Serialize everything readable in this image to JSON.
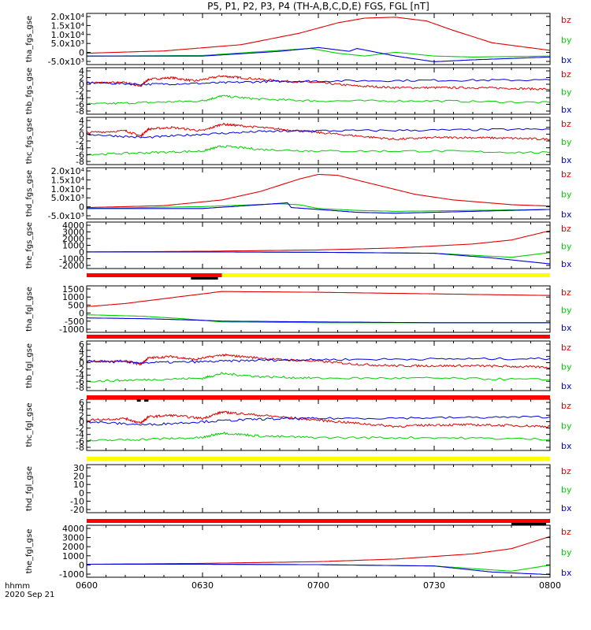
{
  "title": "P5, P1, P2, P3, P4 (TH-A,B,C,D,E) FGS, FGL [nT]",
  "x_unit_label": "hhmm",
  "date_label": "2020 Sep 21",
  "colors": {
    "bz": "#e00000",
    "by": "#00d000",
    "bx": "#0000e0",
    "bar_red": "#ff0000",
    "bar_yellow": "#ffff00",
    "bar_black": "#000000"
  },
  "chart_data": {
    "type": "line",
    "x_ticks": [
      "0600",
      "0630",
      "0700",
      "0730",
      "0800"
    ],
    "x_range": [
      "06:00",
      "08:00"
    ],
    "panels": [
      {
        "ylabel": "tha_fgs_gse",
        "y_ticks": [
          "2.0x10⁴",
          "1.5x10⁴",
          "1.0x10⁴",
          "5.0x10³",
          "0",
          "-5.0x10³"
        ],
        "y_range": [
          -6000,
          21000
        ],
        "series": [
          {
            "name": "bz",
            "x": [
              "06:00",
              "06:20",
              "06:40",
              "06:55",
              "07:05",
              "07:12",
              "07:20",
              "07:28",
              "07:35",
              "07:45",
              "08:00"
            ],
            "y": [
              0,
              1200,
              4500,
              10500,
              16000,
              18500,
              19000,
              17000,
              12000,
              5500,
              1500
            ]
          },
          {
            "name": "by",
            "x": [
              "06:00",
              "06:30",
              "06:50",
              "06:58",
              "07:05",
              "07:12",
              "07:20",
              "07:30",
              "07:40",
              "08:00"
            ],
            "y": [
              -1500,
              -1200,
              1500,
              2500,
              0,
              -1500,
              500,
              -1500,
              -2000,
              -1500
            ]
          },
          {
            "name": "bx",
            "x": [
              "06:00",
              "06:30",
              "06:50",
              "07:00",
              "07:08",
              "07:10",
              "07:20",
              "07:30",
              "07:40",
              "08:00"
            ],
            "y": [
              -1500,
              -1500,
              1000,
              3000,
              1000,
              2500,
              -1500,
              -4500,
              -3500,
              -2000
            ]
          }
        ]
      },
      {
        "ylabel": "thb_fgs_gse",
        "y_ticks": [
          "4",
          "2",
          "0",
          "-2",
          "-4",
          "-6",
          "-8"
        ],
        "y_range": [
          -9,
          5
        ],
        "series": [
          {
            "name": "bz",
            "x": [
              "06:00",
              "06:10",
              "06:14",
              "06:16",
              "06:22",
              "06:28",
              "06:35",
              "06:40",
              "06:50",
              "07:00",
              "07:10",
              "07:20",
              "07:30",
              "07:40",
              "07:50",
              "08:00"
            ],
            "y": [
              0.5,
              0.5,
              -0.5,
              1.5,
              2.0,
              1.0,
              2.5,
              2.0,
              1.0,
              0.5,
              -0.5,
              -1.0,
              -1.0,
              -1.0,
              -1.2,
              -1.5
            ]
          },
          {
            "name": "by",
            "x": [
              "06:00",
              "06:15",
              "06:30",
              "06:35",
              "06:45",
              "07:00",
              "07:30",
              "08:00"
            ],
            "y": [
              -6.0,
              -5.5,
              -5.0,
              -3.5,
              -4.5,
              -5.0,
              -5.0,
              -5.5
            ]
          },
          {
            "name": "bx",
            "x": [
              "06:00",
              "06:15",
              "06:30",
              "06:45",
              "07:00",
              "07:30",
              "08:00"
            ],
            "y": [
              0.5,
              0.0,
              0.3,
              0.8,
              1.0,
              1.2,
              1.3
            ]
          }
        ]
      },
      {
        "ylabel": "thc_fgs_gse",
        "y_ticks": [
          "4",
          "2",
          "0",
          "-2",
          "-4",
          "-6",
          "-8"
        ],
        "y_range": [
          -9,
          5
        ],
        "series": [
          {
            "name": "bz",
            "x": [
              "06:00",
              "06:10",
              "06:14",
              "06:16",
              "06:22",
              "06:30",
              "06:35",
              "06:40",
              "06:50",
              "07:00",
              "07:10",
              "07:20",
              "07:30",
              "07:40",
              "07:50",
              "08:00"
            ],
            "y": [
              0.5,
              1.0,
              -0.5,
              1.5,
              2.0,
              1.0,
              3.0,
              2.5,
              1.5,
              0.5,
              -0.5,
              -1.5,
              -1.0,
              -1.0,
              -1.2,
              -1.5
            ]
          },
          {
            "name": "by",
            "x": [
              "06:00",
              "06:15",
              "06:30",
              "06:35",
              "06:45",
              "07:00",
              "07:30",
              "08:00"
            ],
            "y": [
              -6.0,
              -5.5,
              -5.0,
              -3.5,
              -4.5,
              -5.0,
              -5.0,
              -5.5
            ]
          },
          {
            "name": "bx",
            "x": [
              "06:00",
              "06:15",
              "06:30",
              "06:45",
              "07:00",
              "07:30",
              "08:00"
            ],
            "y": [
              0.0,
              -1.0,
              0.0,
              0.8,
              1.0,
              1.2,
              1.5
            ]
          }
        ]
      },
      {
        "ylabel": "thd_fgs_gse",
        "y_ticks": [
          "2.0x10⁴",
          "1.5x10⁴",
          "1.0x10⁴",
          "5.0x10³",
          "0",
          "-5.0x10³"
        ],
        "y_range": [
          -6000,
          21000
        ],
        "series": [
          {
            "name": "bz",
            "x": [
              "06:00",
              "06:20",
              "06:35",
              "06:45",
              "06:55",
              "07:00",
              "07:05",
              "07:15",
              "07:25",
              "07:35",
              "07:50",
              "08:00"
            ],
            "y": [
              0,
              1000,
              4000,
              8500,
              15000,
              17500,
              17000,
              12000,
              7000,
              4000,
              1500,
              800
            ]
          },
          {
            "name": "by",
            "x": [
              "06:00",
              "06:30",
              "06:50",
              "06:55",
              "07:00",
              "07:10",
              "07:20",
              "07:40",
              "08:00"
            ],
            "y": [
              -500,
              500,
              2000,
              1500,
              -500,
              -1500,
              -2000,
              -1500,
              -1000
            ]
          },
          {
            "name": "bx",
            "x": [
              "06:00",
              "06:30",
              "06:45",
              "06:52",
              "06:53",
              "07:00",
              "07:10",
              "07:20",
              "07:40",
              "08:00"
            ],
            "y": [
              -500,
              -500,
              1500,
              2500,
              0,
              -1000,
              -2500,
              -3000,
              -2000,
              -1000
            ]
          }
        ]
      },
      {
        "ylabel": "the_fgs_gse",
        "y_ticks": [
          "4000",
          "3000",
          "2000",
          "1000",
          "0",
          "-1000",
          "-2000"
        ],
        "y_range": [
          -2500,
          4500
        ],
        "series": [
          {
            "name": "bz",
            "x": [
              "06:00",
              "06:30",
              "07:00",
              "07:20",
              "07:40",
              "07:50",
              "08:00"
            ],
            "y": [
              0,
              100,
              300,
              600,
              1200,
              1800,
              3200
            ]
          },
          {
            "name": "by",
            "x": [
              "06:00",
              "06:30",
              "07:00",
              "07:30",
              "07:50",
              "08:00"
            ],
            "y": [
              0,
              0,
              -50,
              -200,
              -800,
              -100
            ]
          },
          {
            "name": "bx",
            "x": [
              "06:00",
              "06:30",
              "07:00",
              "07:30",
              "07:45",
              "08:00"
            ],
            "y": [
              0,
              0,
              -50,
              -200,
              -900,
              -1800
            ]
          }
        ]
      },
      {
        "ylabel": "tha_fgl_gse",
        "y_ticks": [
          "1500",
          "1000",
          "500",
          "0",
          "-500",
          "-1000"
        ],
        "y_range": [
          -1200,
          1700
        ],
        "series": [
          {
            "name": "bz",
            "x": [
              "06:00",
              "06:10",
              "06:20",
              "06:30",
              "06:35",
              "07:00",
              "07:30",
              "08:00"
            ],
            "y": [
              400,
              600,
              900,
              1200,
              1350,
              1300,
              1200,
              1100
            ]
          },
          {
            "name": "by",
            "x": [
              "06:00",
              "06:15",
              "06:25",
              "06:35",
              "07:00",
              "07:30",
              "08:00"
            ],
            "y": [
              -100,
              -200,
              -350,
              -550,
              -600,
              -600,
              -600
            ]
          },
          {
            "name": "bx",
            "x": [
              "06:00",
              "06:15",
              "06:30",
              "06:35",
              "07:00",
              "07:30",
              "08:00"
            ],
            "y": [
              -300,
              -350,
              -450,
              -500,
              -550,
              -600,
              -600
            ]
          }
        ]
      },
      {
        "ylabel": "thb_fgl_gse",
        "y_ticks": [
          "6",
          "4",
          "2",
          "0",
          "-2",
          "-4",
          "-6",
          "-8"
        ],
        "y_range": [
          -9,
          7
        ],
        "series": [
          {
            "name": "bz",
            "x": [
              "06:00",
              "06:10",
              "06:14",
              "06:16",
              "06:22",
              "06:28",
              "06:35",
              "06:40",
              "06:50",
              "07:00",
              "07:10",
              "07:20",
              "07:30",
              "07:40",
              "07:50",
              "08:00"
            ],
            "y": [
              0.5,
              0.5,
              -0.5,
              1.5,
              2.0,
              1.0,
              2.5,
              2.0,
              1.0,
              0.5,
              -0.5,
              -1.0,
              -1.0,
              -1.0,
              -1.2,
              -1.5
            ]
          },
          {
            "name": "by",
            "x": [
              "06:00",
              "06:15",
              "06:30",
              "06:35",
              "06:45",
              "07:00",
              "07:30",
              "08:00"
            ],
            "y": [
              -6.0,
              -5.5,
              -5.0,
              -3.5,
              -4.5,
              -5.0,
              -5.0,
              -5.5
            ]
          },
          {
            "name": "bx",
            "x": [
              "06:00",
              "06:15",
              "06:30",
              "06:45",
              "07:00",
              "07:30",
              "08:00"
            ],
            "y": [
              0.5,
              0.0,
              0.3,
              0.8,
              1.0,
              1.2,
              1.3
            ]
          }
        ]
      },
      {
        "ylabel": "thc_fgl_gse",
        "y_ticks": [
          "6",
          "4",
          "2",
          "0",
          "-2",
          "-4",
          "-6",
          "-8"
        ],
        "y_range": [
          -9,
          7
        ],
        "series": [
          {
            "name": "bz",
            "x": [
              "06:00",
              "06:10",
              "06:14",
              "06:16",
              "06:22",
              "06:30",
              "06:35",
              "06:40",
              "06:50",
              "07:00",
              "07:10",
              "07:20",
              "07:30",
              "07:40",
              "07:50",
              "08:00"
            ],
            "y": [
              0.5,
              1.0,
              -0.5,
              1.5,
              2.0,
              1.0,
              3.0,
              2.5,
              1.5,
              0.5,
              -0.5,
              -1.5,
              -1.0,
              -1.0,
              -1.2,
              -1.5
            ]
          },
          {
            "name": "by",
            "x": [
              "06:00",
              "06:15",
              "06:30",
              "06:35",
              "06:45",
              "07:00",
              "07:30",
              "08:00"
            ],
            "y": [
              -6.0,
              -5.5,
              -5.0,
              -3.5,
              -4.5,
              -5.0,
              -5.0,
              -5.5
            ]
          },
          {
            "name": "bx",
            "x": [
              "06:00",
              "06:15",
              "06:30",
              "06:45",
              "07:00",
              "07:30",
              "08:00"
            ],
            "y": [
              0.0,
              -1.0,
              0.0,
              0.8,
              1.0,
              1.2,
              1.5
            ]
          }
        ]
      },
      {
        "ylabel": "thd_fgl_gse",
        "y_ticks": [
          "30",
          "20",
          "10",
          "0",
          "-10",
          "-20"
        ],
        "y_range": [
          -25,
          35
        ],
        "series": []
      },
      {
        "ylabel": "the_fgl_gse",
        "y_ticks": [
          "4000",
          "3000",
          "2000",
          "1000",
          "0",
          "-1000"
        ],
        "y_range": [
          -1500,
          4500
        ],
        "series": [
          {
            "name": "bz",
            "x": [
              "06:00",
              "06:30",
              "07:00",
              "07:20",
              "07:40",
              "07:50",
              "08:00"
            ],
            "y": [
              0,
              100,
              300,
              600,
              1200,
              1800,
              3200
            ]
          },
          {
            "name": "by",
            "x": [
              "06:00",
              "06:30",
              "07:00",
              "07:30",
              "07:50",
              "08:00"
            ],
            "y": [
              0,
              0,
              -50,
              -200,
              -800,
              -100
            ]
          },
          {
            "name": "bx",
            "x": [
              "06:00",
              "06:30",
              "07:00",
              "07:30",
              "07:45",
              "08:00"
            ],
            "y": [
              0,
              0,
              -50,
              -200,
              -900,
              -1200
            ]
          }
        ]
      }
    ],
    "legend_entries": [
      "bz",
      "by",
      "bx"
    ],
    "legend_placement": "right",
    "grid": false
  },
  "status_bars": [
    {
      "after_panel": 4,
      "segments": [
        {
          "color": "red",
          "from": "06:00",
          "to": "06:35"
        },
        {
          "color": "yellow",
          "from": "06:35",
          "to": "08:00"
        }
      ],
      "marks": [
        {
          "from": "06:27",
          "to": "06:34"
        }
      ]
    },
    {
      "after_panel": 5,
      "segments": [
        {
          "color": "red",
          "from": "06:00",
          "to": "08:00"
        }
      ],
      "marks": []
    },
    {
      "after_panel": 6,
      "segments": [
        {
          "color": "red",
          "from": "06:00",
          "to": "08:00"
        }
      ],
      "marks": [
        {
          "from": "06:13",
          "to": "06:14"
        },
        {
          "from": "06:15",
          "to": "06:16"
        }
      ]
    },
    {
      "after_panel": 7,
      "segments": [
        {
          "color": "yellow",
          "from": "06:00",
          "to": "08:00"
        }
      ],
      "marks": []
    },
    {
      "after_panel": 8,
      "segments": [
        {
          "color": "red",
          "from": "06:00",
          "to": "08:00"
        }
      ],
      "marks": [
        {
          "from": "07:50",
          "to": "07:59"
        }
      ]
    }
  ]
}
